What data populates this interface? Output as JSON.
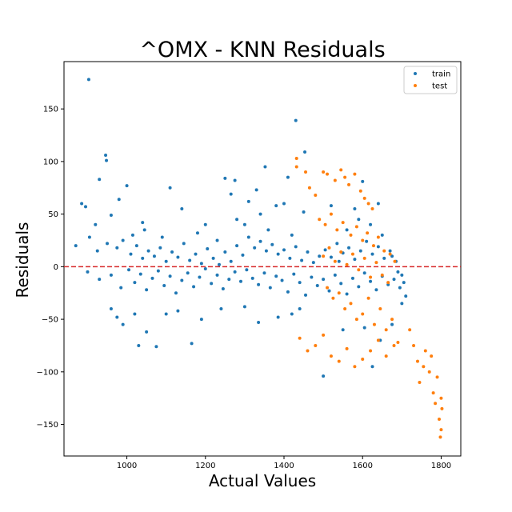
{
  "chart_data": {
    "type": "scatter",
    "title": "^OMX - KNN Residuals",
    "xlabel": "Actual Values",
    "ylabel": "Residuals",
    "xlim": [
      840,
      1850
    ],
    "ylim": [
      -180,
      195
    ],
    "xticks": [
      1000,
      1200,
      1400,
      1600,
      1800
    ],
    "yticks": [
      -150,
      -100,
      -50,
      0,
      50,
      100,
      150
    ],
    "xtick_labels": [
      "1000",
      "1200",
      "1400",
      "1600",
      "1800"
    ],
    "ytick_labels": [
      "−150",
      "−100",
      "−50",
      "0",
      "50",
      "100",
      "150"
    ],
    "grid": false,
    "legend_position": "top-right",
    "reference_line": {
      "y": 0,
      "color": "#d62728",
      "style": "dashed"
    },
    "series": [
      {
        "name": "train",
        "color": "#1f77b4",
        "points": [
          [
            903,
            178
          ],
          [
            1430,
            139
          ],
          [
            946,
            106
          ],
          [
            1453,
            109
          ],
          [
            948,
            101
          ],
          [
            980,
            64
          ],
          [
            930,
            83
          ],
          [
            895,
            57
          ],
          [
            885,
            60
          ],
          [
            960,
            49
          ],
          [
            1250,
            84
          ],
          [
            1352,
            95
          ],
          [
            1330,
            73
          ],
          [
            1275,
            82
          ],
          [
            1140,
            55
          ],
          [
            1000,
            77
          ],
          [
            1600,
            81
          ],
          [
            1110,
            75
          ],
          [
            1265,
            69
          ],
          [
            1410,
            85
          ],
          [
            1400,
            60
          ],
          [
            1310,
            62
          ],
          [
            1380,
            58
          ],
          [
            1640,
            60
          ],
          [
            920,
            40
          ],
          [
            1040,
            42
          ],
          [
            1200,
            40
          ],
          [
            1280,
            45
          ],
          [
            1340,
            50
          ],
          [
            1450,
            52
          ],
          [
            1520,
            58
          ],
          [
            1580,
            55
          ],
          [
            870,
            20
          ],
          [
            905,
            28
          ],
          [
            925,
            15
          ],
          [
            950,
            22
          ],
          [
            975,
            18
          ],
          [
            990,
            25
          ],
          [
            1010,
            12
          ],
          [
            1025,
            20
          ],
          [
            1040,
            8
          ],
          [
            1055,
            15
          ],
          [
            1070,
            10
          ],
          [
            1085,
            18
          ],
          [
            1100,
            5
          ],
          [
            1115,
            14
          ],
          [
            1130,
            9
          ],
          [
            1145,
            22
          ],
          [
            1160,
            6
          ],
          [
            1175,
            12
          ],
          [
            1190,
            3
          ],
          [
            1205,
            17
          ],
          [
            1220,
            8
          ],
          [
            1235,
            2
          ],
          [
            1250,
            14
          ],
          [
            1265,
            5
          ],
          [
            1280,
            20
          ],
          [
            1295,
            11
          ],
          [
            1310,
            28
          ],
          [
            1325,
            18
          ],
          [
            1340,
            24
          ],
          [
            1355,
            15
          ],
          [
            1370,
            21
          ],
          [
            1385,
            12
          ],
          [
            1400,
            16
          ],
          [
            1415,
            8
          ],
          [
            1430,
            19
          ],
          [
            1445,
            6
          ],
          [
            1460,
            14
          ],
          [
            1475,
            4
          ],
          [
            1490,
            10
          ],
          [
            1505,
            16
          ],
          [
            1520,
            9
          ],
          [
            1535,
            22
          ],
          [
            1550,
            13
          ],
          [
            1565,
            18
          ],
          [
            1580,
            7
          ],
          [
            1595,
            15
          ],
          [
            1610,
            24
          ],
          [
            1625,
            12
          ],
          [
            1640,
            19
          ],
          [
            1655,
            8
          ],
          [
            1670,
            15
          ],
          [
            1685,
            5
          ],
          [
            1700,
            -8
          ],
          [
            900,
            -5
          ],
          [
            930,
            -12
          ],
          [
            960,
            -8
          ],
          [
            985,
            -20
          ],
          [
            1005,
            -3
          ],
          [
            1020,
            -15
          ],
          [
            1035,
            -7
          ],
          [
            1050,
            -22
          ],
          [
            1065,
            -11
          ],
          [
            1080,
            -4
          ],
          [
            1095,
            -18
          ],
          [
            1110,
            -9
          ],
          [
            1125,
            -25
          ],
          [
            1140,
            -13
          ],
          [
            1155,
            -6
          ],
          [
            1170,
            -19
          ],
          [
            1185,
            -10
          ],
          [
            1200,
            -2
          ],
          [
            1215,
            -16
          ],
          [
            1230,
            -8
          ],
          [
            1245,
            -21
          ],
          [
            1260,
            -12
          ],
          [
            1275,
            -5
          ],
          [
            1290,
            -14
          ],
          [
            1305,
            -3
          ],
          [
            1320,
            -11
          ],
          [
            1335,
            -17
          ],
          [
            1350,
            -6
          ],
          [
            1365,
            -20
          ],
          [
            1380,
            -9
          ],
          [
            1395,
            -13
          ],
          [
            1410,
            -24
          ],
          [
            1425,
            -7
          ],
          [
            1440,
            -15
          ],
          [
            1455,
            -27
          ],
          [
            1470,
            -10
          ],
          [
            1485,
            -18
          ],
          [
            1500,
            -12
          ],
          [
            1515,
            -23
          ],
          [
            1530,
            -8
          ],
          [
            1545,
            -16
          ],
          [
            1560,
            -26
          ],
          [
            1575,
            -11
          ],
          [
            1590,
            -19
          ],
          [
            1605,
            -6
          ],
          [
            1620,
            -14
          ],
          [
            1635,
            -22
          ],
          [
            1650,
            -9
          ],
          [
            1665,
            -17
          ],
          [
            1680,
            -12
          ],
          [
            1695,
            -20
          ],
          [
            1710,
            -28
          ],
          [
            960,
            -40
          ],
          [
            975,
            -48
          ],
          [
            990,
            -55
          ],
          [
            1020,
            -45
          ],
          [
            1030,
            -75
          ],
          [
            1050,
            -62
          ],
          [
            1075,
            -76
          ],
          [
            1100,
            -45
          ],
          [
            1130,
            -42
          ],
          [
            1165,
            -73
          ],
          [
            1190,
            -50
          ],
          [
            1240,
            -40
          ],
          [
            1300,
            -38
          ],
          [
            1335,
            -53
          ],
          [
            1385,
            -48
          ],
          [
            1420,
            -45
          ],
          [
            1440,
            -40
          ],
          [
            1500,
            -104
          ],
          [
            1550,
            -60
          ],
          [
            1605,
            -58
          ],
          [
            1625,
            -95
          ],
          [
            1645,
            -70
          ],
          [
            1675,
            -55
          ],
          [
            1700,
            -35
          ],
          [
            1560,
            35
          ],
          [
            1590,
            45
          ],
          [
            1620,
            40
          ],
          [
            1650,
            30
          ],
          [
            1675,
            10
          ],
          [
            1690,
            -5
          ],
          [
            1705,
            -15
          ],
          [
            1540,
            5
          ],
          [
            1015,
            30
          ],
          [
            1045,
            35
          ],
          [
            1090,
            28
          ],
          [
            1180,
            32
          ],
          [
            1230,
            25
          ],
          [
            1300,
            40
          ],
          [
            1360,
            35
          ],
          [
            1420,
            30
          ]
        ]
      },
      {
        "name": "test",
        "color": "#ff7f0e",
        "points": [
          [
            1432,
            103
          ],
          [
            1432,
            95
          ],
          [
            1455,
            90
          ],
          [
            1465,
            75
          ],
          [
            1480,
            68
          ],
          [
            1500,
            90
          ],
          [
            1510,
            88
          ],
          [
            1530,
            82
          ],
          [
            1545,
            92
          ],
          [
            1555,
            85
          ],
          [
            1565,
            78
          ],
          [
            1580,
            88
          ],
          [
            1595,
            72
          ],
          [
            1605,
            65
          ],
          [
            1615,
            60
          ],
          [
            1625,
            55
          ],
          [
            1490,
            45
          ],
          [
            1505,
            40
          ],
          [
            1520,
            50
          ],
          [
            1535,
            35
          ],
          [
            1550,
            42
          ],
          [
            1570,
            30
          ],
          [
            1585,
            38
          ],
          [
            1600,
            25
          ],
          [
            1612,
            32
          ],
          [
            1628,
            20
          ],
          [
            1640,
            28
          ],
          [
            1655,
            15
          ],
          [
            1670,
            12
          ],
          [
            1682,
            5
          ],
          [
            1500,
            10
          ],
          [
            1515,
            18
          ],
          [
            1530,
            5
          ],
          [
            1545,
            14
          ],
          [
            1560,
            2
          ],
          [
            1575,
            12
          ],
          [
            1590,
            -3
          ],
          [
            1605,
            8
          ],
          [
            1620,
            -10
          ],
          [
            1635,
            4
          ],
          [
            1650,
            -8
          ],
          [
            1665,
            -15
          ],
          [
            1510,
            -20
          ],
          [
            1525,
            -30
          ],
          [
            1540,
            -25
          ],
          [
            1555,
            -40
          ],
          [
            1570,
            -35
          ],
          [
            1585,
            -50
          ],
          [
            1600,
            -45
          ],
          [
            1615,
            -30
          ],
          [
            1630,
            -55
          ],
          [
            1645,
            -40
          ],
          [
            1660,
            -60
          ],
          [
            1675,
            -50
          ],
          [
            1690,
            -72
          ],
          [
            1440,
            -68
          ],
          [
            1460,
            -80
          ],
          [
            1480,
            -75
          ],
          [
            1500,
            -65
          ],
          [
            1520,
            -85
          ],
          [
            1540,
            -90
          ],
          [
            1560,
            -78
          ],
          [
            1580,
            -95
          ],
          [
            1600,
            -88
          ],
          [
            1620,
            -80
          ],
          [
            1640,
            -70
          ],
          [
            1660,
            -85
          ],
          [
            1680,
            -75
          ],
          [
            1720,
            -60
          ],
          [
            1730,
            -75
          ],
          [
            1740,
            -90
          ],
          [
            1745,
            -110
          ],
          [
            1755,
            -95
          ],
          [
            1760,
            -80
          ],
          [
            1770,
            -100
          ],
          [
            1775,
            -85
          ],
          [
            1780,
            -120
          ],
          [
            1785,
            -130
          ],
          [
            1790,
            -105
          ],
          [
            1795,
            -145
          ],
          [
            1800,
            -125
          ],
          [
            1800,
            -155
          ],
          [
            1798,
            -162
          ],
          [
            1802,
            -135
          ]
        ]
      }
    ]
  }
}
